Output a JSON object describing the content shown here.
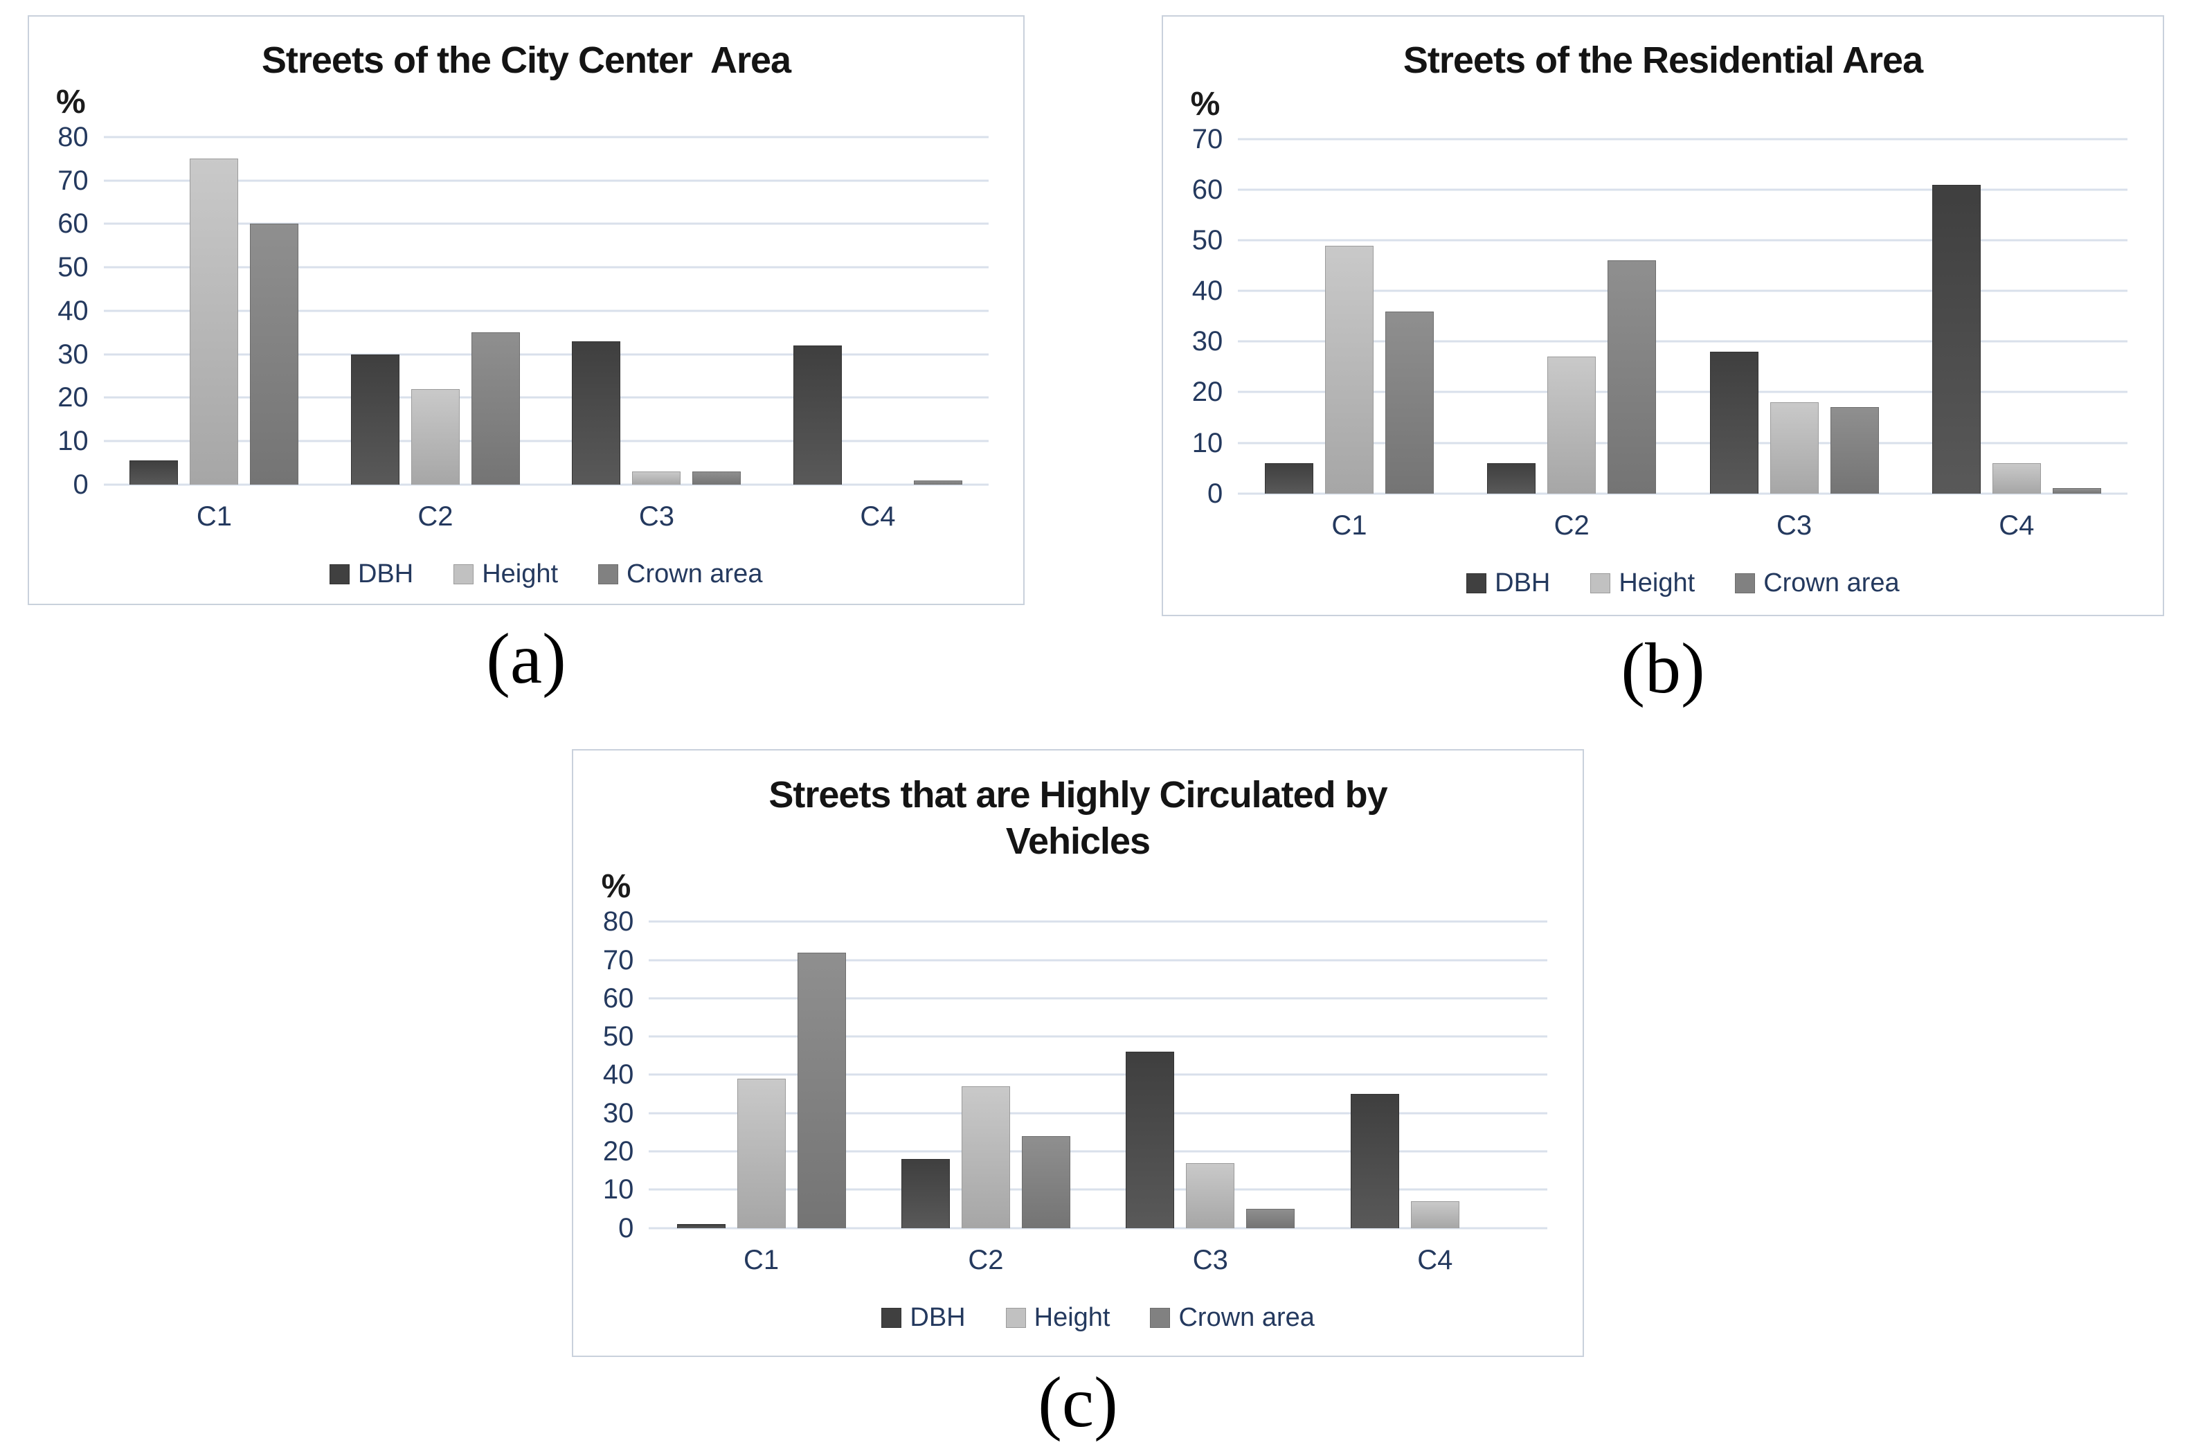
{
  "colors": {
    "background": "#ffffff",
    "title_text": "#141414",
    "axis_text": "#24395e",
    "gridline": "#d9e0eb",
    "panel_border": "#c9d1dc",
    "series": [
      {
        "name": "DBH",
        "top": "#3f3f3f",
        "bottom": "#595959",
        "border": "#333333",
        "legend": "#404040"
      },
      {
        "name": "Height",
        "top": "#c9c9c9",
        "bottom": "#a6a6a6",
        "border": "#9b9b9b",
        "legend": "#c1c1c1"
      },
      {
        "name": "Crown area",
        "top": "#8f8f8f",
        "bottom": "#747474",
        "border": "#6d6d6d",
        "legend": "#818181"
      }
    ]
  },
  "chart_data": [
    {
      "type": "bar",
      "caption": "(a)",
      "title": "Streets of the City Center  Area",
      "unit": "%",
      "ylim": [
        0,
        80
      ],
      "ytick_step": 10,
      "grid": true,
      "legend_position": "bottom",
      "categories": [
        "C1",
        "C2",
        "C3",
        "C4"
      ],
      "series": [
        {
          "name": "DBH",
          "values": [
            5.5,
            30,
            33,
            32
          ]
        },
        {
          "name": "Height",
          "values": [
            75,
            22,
            3,
            0
          ]
        },
        {
          "name": "Crown area",
          "values": [
            60,
            35,
            3,
            1
          ]
        }
      ],
      "legend": [
        "DBH",
        "Height",
        "Crown area"
      ]
    },
    {
      "type": "bar",
      "caption": "(b)",
      "title": "Streets of the Residential Area",
      "unit": "%",
      "ylim": [
        0,
        70
      ],
      "ytick_step": 10,
      "grid": true,
      "legend_position": "bottom",
      "categories": [
        "C1",
        "C2",
        "C3",
        "C4"
      ],
      "series": [
        {
          "name": "DBH",
          "values": [
            6,
            6,
            28,
            61
          ]
        },
        {
          "name": "Height",
          "values": [
            49,
            27,
            18,
            6
          ]
        },
        {
          "name": "Crown area",
          "values": [
            36,
            46,
            17,
            1
          ]
        }
      ],
      "legend": [
        "DBH",
        "Height",
        "Crown area"
      ]
    },
    {
      "type": "bar",
      "caption": "(c)",
      "title": "Streets that are Highly Circulated by Vehicles",
      "unit": "%",
      "ylim": [
        0,
        80
      ],
      "ytick_step": 10,
      "grid": true,
      "legend_position": "bottom",
      "categories": [
        "C1",
        "C2",
        "C3",
        "C4"
      ],
      "series": [
        {
          "name": "DBH",
          "values": [
            1,
            18,
            46,
            35
          ]
        },
        {
          "name": "Height",
          "values": [
            39,
            37,
            17,
            7
          ]
        },
        {
          "name": "Crown area",
          "values": [
            72,
            24,
            5,
            0
          ]
        }
      ],
      "legend": [
        "DBH",
        "Height",
        "Crown area"
      ]
    }
  ]
}
